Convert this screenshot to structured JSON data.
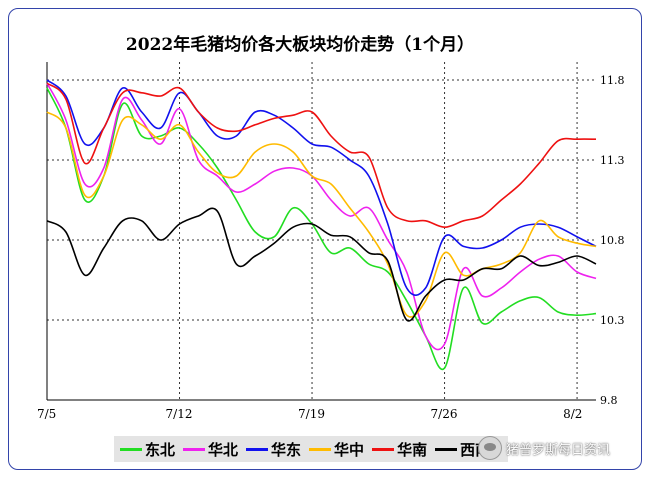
{
  "chart_data": {
    "type": "line",
    "title": "2022年毛猪均价各大板块均价走势（1个月）",
    "xlabel": "",
    "ylabel": "",
    "x_ticks": [
      "7/5",
      "7/12",
      "7/19",
      "7/26",
      "8/2"
    ],
    "y_ticks": [
      "11.8",
      "11.3",
      "10.8",
      "10.3",
      "9.8"
    ],
    "ylim": [
      9.8,
      11.8
    ],
    "grid": "dotted",
    "legend_position": "bottom",
    "series": [
      {
        "name": "东北",
        "color": "#22dd22",
        "values": [
          11.75,
          11.5,
          11.05,
          11.2,
          11.65,
          11.45,
          11.45,
          11.5,
          11.4,
          11.25,
          11.05,
          10.85,
          10.82,
          11.0,
          10.9,
          10.72,
          10.75,
          10.65,
          10.6,
          10.42,
          10.2,
          10.0,
          10.5,
          10.28,
          10.35,
          10.42,
          10.44,
          10.35,
          10.33,
          10.34
        ]
      },
      {
        "name": "华北",
        "color": "#ee22ee",
        "values": [
          11.78,
          11.55,
          11.15,
          11.25,
          11.68,
          11.55,
          11.4,
          11.62,
          11.3,
          11.2,
          11.1,
          11.15,
          11.23,
          11.25,
          11.2,
          11.05,
          10.95,
          11.0,
          10.8,
          10.6,
          10.2,
          10.15,
          10.62,
          10.45,
          10.5,
          10.6,
          10.68,
          10.7,
          10.6,
          10.56
        ]
      },
      {
        "name": "华东",
        "color": "#1111ee",
        "values": [
          11.8,
          11.7,
          11.4,
          11.5,
          11.75,
          11.6,
          11.5,
          11.72,
          11.6,
          11.45,
          11.45,
          11.6,
          11.58,
          11.5,
          11.4,
          11.38,
          11.3,
          11.2,
          10.9,
          10.5,
          10.5,
          10.82,
          10.76,
          10.75,
          10.8,
          10.88,
          10.9,
          10.88,
          10.82,
          10.76
        ]
      },
      {
        "name": "华中",
        "color": "#ffbb00",
        "values": [
          11.6,
          11.5,
          11.08,
          11.2,
          11.55,
          11.52,
          11.43,
          11.52,
          11.35,
          11.22,
          11.2,
          11.35,
          11.4,
          11.35,
          11.2,
          11.15,
          11.0,
          10.85,
          10.65,
          10.33,
          10.42,
          10.72,
          10.58,
          10.62,
          10.65,
          10.72,
          10.92,
          10.82,
          10.78,
          10.76
        ]
      },
      {
        "name": "华南",
        "color": "#ee1111",
        "values": [
          11.78,
          11.68,
          11.28,
          11.5,
          11.72,
          11.72,
          11.7,
          11.75,
          11.6,
          11.5,
          11.48,
          11.52,
          11.56,
          11.58,
          11.6,
          11.45,
          11.35,
          11.32,
          11.0,
          10.92,
          10.92,
          10.88,
          10.92,
          10.95,
          11.05,
          11.15,
          11.28,
          11.42,
          11.43,
          11.43
        ]
      },
      {
        "name": "西南",
        "color": "#000000",
        "values": [
          10.92,
          10.85,
          10.58,
          10.75,
          10.92,
          10.92,
          10.8,
          10.9,
          10.95,
          10.98,
          10.65,
          10.7,
          10.78,
          10.88,
          10.9,
          10.83,
          10.82,
          10.72,
          10.67,
          10.3,
          10.45,
          10.55,
          10.55,
          10.62,
          10.62,
          10.7,
          10.64,
          10.66,
          10.7,
          10.65
        ]
      }
    ]
  },
  "watermark": {
    "text": "猪普罗斯每日资讯",
    "icon": "wechat-icon"
  }
}
